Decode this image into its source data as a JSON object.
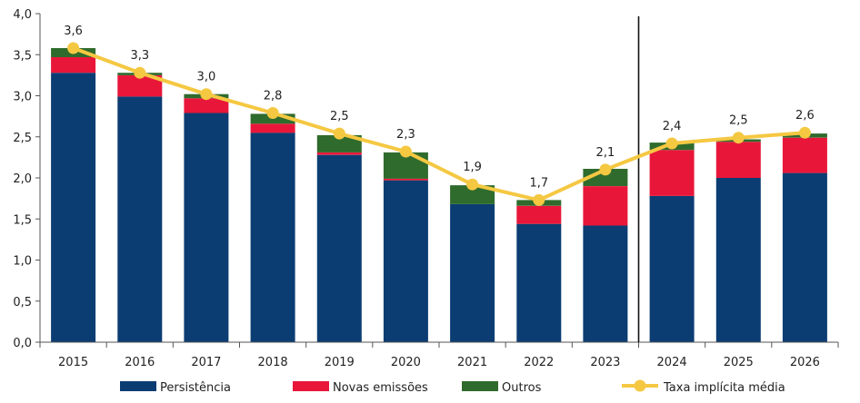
{
  "chart_data": {
    "type": "bar",
    "stacked": true,
    "categories": [
      "2015",
      "2016",
      "2017",
      "2018",
      "2019",
      "2020",
      "2021",
      "2022",
      "2023",
      "2024",
      "2025",
      "2026"
    ],
    "series": [
      {
        "name": "Persistência",
        "color": "#0b3d73",
        "values": [
          3.28,
          2.99,
          2.79,
          2.55,
          2.28,
          1.97,
          1.68,
          1.44,
          1.42,
          1.78,
          2.0,
          2.06
        ]
      },
      {
        "name": "Novas emissões",
        "color": "#e8173a",
        "values": [
          0.19,
          0.26,
          0.18,
          0.11,
          0.03,
          0.02,
          0.0,
          0.22,
          0.48,
          0.56,
          0.44,
          0.43
        ]
      },
      {
        "name": "Outros",
        "color": "#2f6b2c",
        "values": [
          0.11,
          0.03,
          0.05,
          0.12,
          0.21,
          0.32,
          0.23,
          0.07,
          0.21,
          0.09,
          0.03,
          0.05
        ]
      }
    ],
    "line": {
      "name": "Taxa implícita média",
      "color": "#f5c842",
      "values": [
        3.58,
        3.28,
        3.02,
        2.79,
        2.54,
        2.32,
        1.92,
        1.73,
        2.1,
        2.42,
        2.49,
        2.55
      ],
      "labels": [
        "3,6",
        "3,3",
        "3,0",
        "2,8",
        "2,5",
        "2,3",
        "1,9",
        "1,7",
        "2,1",
        "2,4",
        "2,5",
        "2,6"
      ]
    },
    "y_ticks": [
      "0,0",
      "0,5",
      "1,0",
      "1,5",
      "2,0",
      "2,5",
      "3,0",
      "3,5",
      "4,0"
    ],
    "ylim": [
      0,
      4.0
    ],
    "separator_after": "2023",
    "legend_position": "bottom"
  }
}
